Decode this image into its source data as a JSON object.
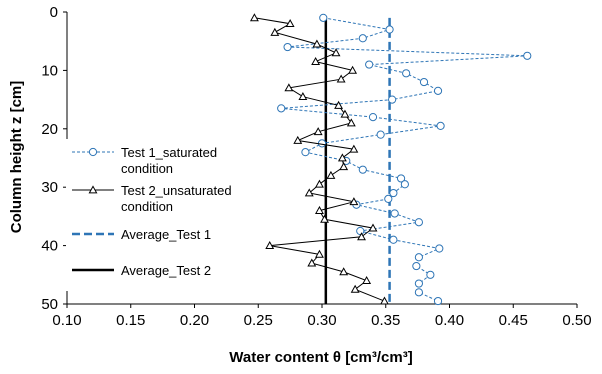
{
  "chart_data": {
    "type": "line",
    "title": "",
    "xlabel": "Water content θ [cm³/cm³]",
    "ylabel": "Column height z [cm]",
    "xlim": [
      0.1,
      0.5
    ],
    "ylim": [
      0,
      50
    ],
    "y_inverted": true,
    "x_ticks": [
      "0.10",
      "0.15",
      "0.20",
      "0.25",
      "0.30",
      "0.35",
      "0.40",
      "0.45",
      "0.50"
    ],
    "y_ticks": [
      "0",
      "10",
      "20",
      "30",
      "40",
      "50"
    ],
    "grid": false,
    "legend_position": "left",
    "colors": {
      "test1": "#2E75B6",
      "test2": "#000000"
    },
    "series": [
      {
        "name": "Test 1_saturated condition",
        "style": "dashed-circle",
        "points": [
          {
            "x": 0.301,
            "y": 1.0
          },
          {
            "x": 0.353,
            "y": 3.0
          },
          {
            "x": 0.332,
            "y": 4.5
          },
          {
            "x": 0.273,
            "y": 6.0
          },
          {
            "x": 0.461,
            "y": 7.5
          },
          {
            "x": 0.337,
            "y": 9.0
          },
          {
            "x": 0.366,
            "y": 10.5
          },
          {
            "x": 0.38,
            "y": 12.0
          },
          {
            "x": 0.391,
            "y": 13.5
          },
          {
            "x": 0.355,
            "y": 15.0
          },
          {
            "x": 0.268,
            "y": 16.5
          },
          {
            "x": 0.34,
            "y": 18.0
          },
          {
            "x": 0.393,
            "y": 19.5
          },
          {
            "x": 0.346,
            "y": 21.0
          },
          {
            "x": 0.3,
            "y": 22.5
          },
          {
            "x": 0.287,
            "y": 24.0
          },
          {
            "x": 0.319,
            "y": 25.5
          },
          {
            "x": 0.332,
            "y": 27.0
          },
          {
            "x": 0.362,
            "y": 28.5
          },
          {
            "x": 0.365,
            "y": 29.5
          },
          {
            "x": 0.356,
            "y": 31.0
          },
          {
            "x": 0.352,
            "y": 32.0
          },
          {
            "x": 0.327,
            "y": 33.0
          },
          {
            "x": 0.357,
            "y": 34.5
          },
          {
            "x": 0.376,
            "y": 36.0
          },
          {
            "x": 0.33,
            "y": 37.5
          },
          {
            "x": 0.356,
            "y": 39.0
          },
          {
            "x": 0.392,
            "y": 40.5
          },
          {
            "x": 0.376,
            "y": 42.0
          },
          {
            "x": 0.374,
            "y": 43.5
          },
          {
            "x": 0.385,
            "y": 45.0
          },
          {
            "x": 0.376,
            "y": 46.5
          },
          {
            "x": 0.376,
            "y": 48.0
          },
          {
            "x": 0.391,
            "y": 49.5
          }
        ]
      },
      {
        "name": "Test 2_unsaturated condition",
        "style": "solid-triangle",
        "points": [
          {
            "x": 0.247,
            "y": 1.0
          },
          {
            "x": 0.275,
            "y": 2.0
          },
          {
            "x": 0.263,
            "y": 3.5
          },
          {
            "x": 0.296,
            "y": 5.5
          },
          {
            "x": 0.311,
            "y": 7.0
          },
          {
            "x": 0.295,
            "y": 8.5
          },
          {
            "x": 0.324,
            "y": 10.0
          },
          {
            "x": 0.315,
            "y": 11.5
          },
          {
            "x": 0.274,
            "y": 13.0
          },
          {
            "x": 0.285,
            "y": 14.5
          },
          {
            "x": 0.313,
            "y": 16.0
          },
          {
            "x": 0.318,
            "y": 17.5
          },
          {
            "x": 0.323,
            "y": 19.0
          },
          {
            "x": 0.297,
            "y": 20.5
          },
          {
            "x": 0.281,
            "y": 22.0
          },
          {
            "x": 0.325,
            "y": 23.5
          },
          {
            "x": 0.316,
            "y": 25.0
          },
          {
            "x": 0.317,
            "y": 26.5
          },
          {
            "x": 0.307,
            "y": 28.0
          },
          {
            "x": 0.298,
            "y": 29.5
          },
          {
            "x": 0.29,
            "y": 31.0
          },
          {
            "x": 0.325,
            "y": 32.5
          },
          {
            "x": 0.298,
            "y": 34.0
          },
          {
            "x": 0.302,
            "y": 35.5
          },
          {
            "x": 0.34,
            "y": 37.0
          },
          {
            "x": 0.331,
            "y": 38.5
          },
          {
            "x": 0.259,
            "y": 40.0
          },
          {
            "x": 0.298,
            "y": 41.5
          },
          {
            "x": 0.292,
            "y": 43.0
          },
          {
            "x": 0.317,
            "y": 44.5
          },
          {
            "x": 0.335,
            "y": 46.0
          },
          {
            "x": 0.326,
            "y": 47.5
          },
          {
            "x": 0.349,
            "y": 49.5
          }
        ]
      },
      {
        "name": "Average_Test 1",
        "style": "dashed-line",
        "x": 0.353
      },
      {
        "name": "Average_Test 2",
        "style": "solid-line",
        "x": 0.303
      }
    ],
    "legend": {
      "entries": [
        {
          "lines": [
            "Test 1_saturated",
            "condition"
          ]
        },
        {
          "lines": [
            "Test 2_unsaturated",
            "condition"
          ]
        },
        {
          "lines": [
            "Average_Test 1"
          ]
        },
        {
          "lines": [
            "Average_Test 2"
          ]
        }
      ]
    }
  }
}
